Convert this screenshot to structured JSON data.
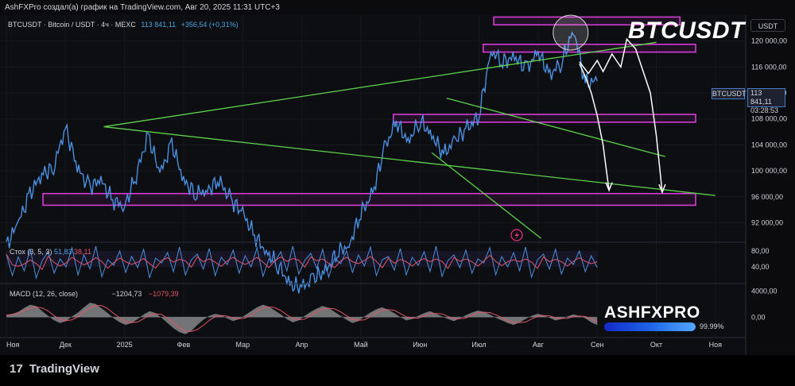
{
  "header": {
    "caption": "AshFXPro создал(а) график на TradingView.com, Авг 20, 2025 11:31 UTC+3"
  },
  "legend": {
    "symbol_line": "BTCUSDT · Bitcoin / USDT · 4ч · MEXC",
    "last": "113 841,11",
    "change": "+356,54 (+0,31%)"
  },
  "overlay_symbol": "BTCUSDT",
  "currency": "USDT",
  "price_tag": {
    "symbol": "BTCUSDT",
    "price": "113 841,11",
    "countdown": "03:28:53"
  },
  "stoch": {
    "label": "Стох (3, 5, 3)",
    "k": "51,83",
    "d": "38,11"
  },
  "macd": {
    "label": "MACD (12, 26, close)",
    "v1": "−1204,73",
    "v2": "−1079,39"
  },
  "watermark": {
    "brand": "ASHFXPRO",
    "progress_pct": 99.99,
    "progress_label": "99.99%"
  },
  "footer": {
    "logo": "TradingView",
    "logo_mark": "17"
  },
  "chart_data": {
    "type": "line",
    "price_axis": {
      "ticks": [
        120000,
        116000,
        112000,
        108000,
        104000,
        100000,
        96000,
        92000
      ],
      "tick_labels": [
        "120 000,00",
        "116 000,00",
        "112 000,00",
        "108 000,00",
        "104 000,00",
        "100 000,00",
        "96 000,00",
        "92 000,00"
      ],
      "range": [
        89000,
        124000
      ]
    },
    "stoch_axis": {
      "tick_labels": [
        "80,00",
        "40,00"
      ],
      "ticks": [
        80,
        40
      ],
      "range": [
        0,
        100
      ]
    },
    "macd_axis": {
      "tick_labels": [
        "4000,00",
        "0,00"
      ],
      "ticks": [
        4000,
        0
      ],
      "range": [
        -3000,
        5000
      ]
    },
    "time_axis": {
      "labels": [
        "Ноя",
        "Дек",
        "2025",
        "Фев",
        "Мар",
        "Апр",
        "Май",
        "Июн",
        "Июл",
        "Авг",
        "Сен",
        "Окт",
        "Ноя"
      ],
      "positions": [
        0,
        1,
        2,
        3,
        4,
        5,
        6,
        7,
        8,
        9,
        10,
        11,
        12
      ]
    },
    "series": [
      {
        "t": [
          0.0,
          0.2,
          0.4,
          0.6,
          0.8,
          1.0,
          1.2,
          1.4,
          1.6,
          1.8,
          2.0,
          2.2,
          2.4,
          2.6,
          2.8,
          3.0,
          3.2,
          3.4,
          3.6,
          3.8,
          4.0,
          4.2,
          4.4,
          4.6,
          4.8,
          5.0,
          5.2,
          5.4,
          5.6,
          5.8,
          6.0,
          6.2,
          6.4,
          6.6,
          6.8,
          7.0,
          7.2,
          7.4,
          7.6,
          7.8,
          8.0,
          8.2,
          8.4,
          8.6,
          8.8,
          9.0,
          9.2,
          9.4,
          9.6,
          9.8,
          10.0
        ],
        "values": [
          88500,
          92000,
          96500,
          99500,
          100500,
          106800,
          100500,
          97500,
          98500,
          95500,
          94500,
          99500,
          105500,
          99500,
          104200,
          98500,
          96500,
          97000,
          98500,
          95500,
          93500,
          90000,
          87500,
          85500,
          82500,
          82000,
          83500,
          84500,
          87500,
          88500,
          93500,
          96500,
          103500,
          107500,
          104500,
          107800,
          105500,
          102500,
          104800,
          106500,
          108500,
          118500,
          116800,
          117500,
          115800,
          118200,
          114800,
          116800,
          121800,
          113500,
          113841
        ]
      }
    ],
    "zones": [
      {
        "low": 122500,
        "high": 123700
      },
      {
        "low": 118300,
        "high": 119500
      },
      {
        "low": 107500,
        "high": 108700
      },
      {
        "low": 94700,
        "high": 96500
      }
    ],
    "trendlines": [
      {
        "t1": 1.65,
        "p1": 106800,
        "t2": 11.0,
        "p2": 119800
      },
      {
        "t1": 1.65,
        "p1": 106800,
        "t2": 12.0,
        "p2": 96200
      },
      {
        "t1": 7.45,
        "p1": 111200,
        "t2": 11.15,
        "p2": 102200
      },
      {
        "t1": 7.2,
        "p1": 102800,
        "t2": 9.05,
        "p2": 89600
      }
    ],
    "projections": [
      {
        "t": [
          9.7,
          9.85,
          10.0,
          10.1,
          10.25,
          10.4,
          10.5,
          10.65,
          10.9,
          11.0,
          11.1
        ],
        "p": [
          116800,
          115000,
          117000,
          115300,
          118000,
          116000,
          120300,
          118800,
          112000,
          105500,
          96700
        ]
      },
      {
        "t": [
          9.7,
          9.8,
          9.9,
          10.0,
          10.1,
          10.15,
          10.2
        ],
        "p": [
          116500,
          114500,
          112000,
          108500,
          104000,
          100500,
          97000
        ]
      }
    ],
    "highlight_circle": {
      "t": 9.55,
      "p": 121300
    },
    "stoch_values": [
      72,
      18,
      65,
      30,
      85,
      12,
      55,
      78,
      24,
      60,
      40,
      88,
      20,
      70,
      35,
      92,
      15,
      58,
      44,
      80,
      26,
      66,
      38,
      84,
      12,
      62,
      50,
      76,
      28,
      90,
      20,
      58,
      72,
      34,
      86,
      18,
      64,
      46,
      82,
      24,
      68,
      40,
      88,
      16,
      60,
      52,
      78,
      30,
      92,
      22,
      56,
      74,
      36,
      84,
      14,
      62,
      48,
      80,
      26,
      70,
      42,
      90,
      18,
      58,
      66,
      32,
      86,
      20,
      64,
      44,
      78,
      28,
      92,
      16,
      56,
      70,
      38,
      82,
      24,
      60,
      50,
      88,
      20,
      66,
      40,
      76,
      30,
      90,
      14,
      58,
      72,
      34,
      84,
      22,
      62,
      46,
      80,
      28,
      68,
      38
    ],
    "macd_values": [
      300,
      500,
      800,
      1400,
      1900,
      1700,
      900,
      200,
      -500,
      -900,
      -600,
      100,
      700,
      1500,
      2200,
      2000,
      1300,
      600,
      -200,
      -800,
      -1200,
      -900,
      -300,
      400,
      900,
      600,
      -100,
      -900,
      -1700,
      -2300,
      -2600,
      -2100,
      -1200,
      -400,
      200,
      500,
      300,
      -200,
      -600,
      -300,
      300,
      900,
      1500,
      1900,
      1600,
      1000,
      400,
      -300,
      -800,
      -500,
      200,
      800,
      1300,
      1700,
      1400,
      800,
      200,
      -400,
      -900,
      -600,
      100,
      700,
      1200,
      1500,
      1100,
      600,
      0,
      -500,
      -300,
      200,
      600,
      900,
      500,
      100,
      -300,
      -600,
      -200,
      300,
      700,
      1000,
      800,
      400,
      -100,
      -500,
      -900,
      -1200,
      -800,
      -300,
      200,
      500,
      300,
      -100,
      -500,
      -300,
      100,
      400,
      200,
      -200,
      -800,
      -1204
    ]
  }
}
